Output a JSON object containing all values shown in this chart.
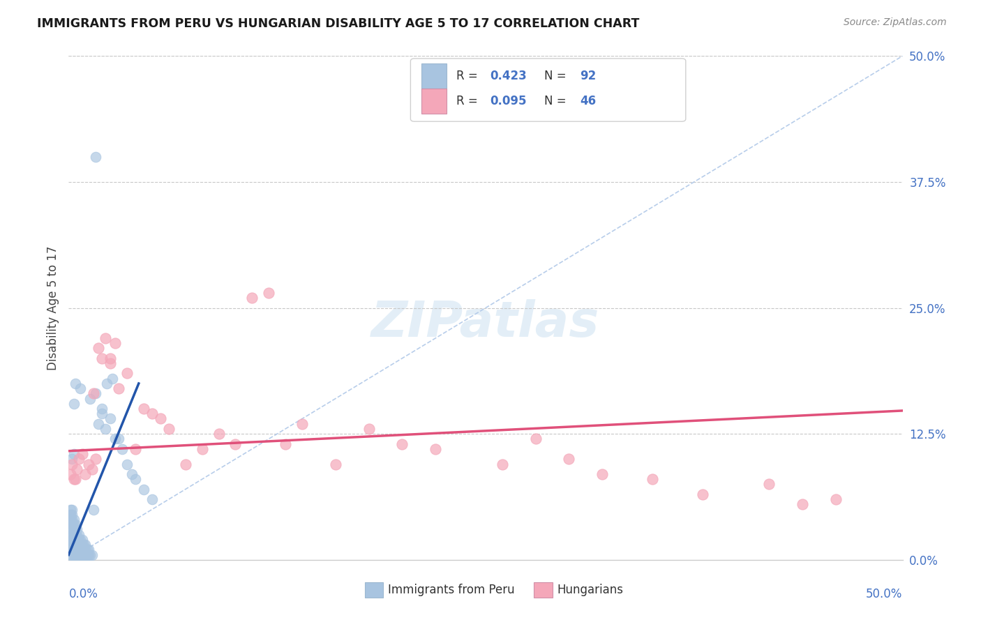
{
  "title": "IMMIGRANTS FROM PERU VS HUNGARIAN DISABILITY AGE 5 TO 17 CORRELATION CHART",
  "source": "Source: ZipAtlas.com",
  "ylabel": "Disability Age 5 to 17",
  "ytick_labels": [
    "0.0%",
    "12.5%",
    "25.0%",
    "37.5%",
    "50.0%"
  ],
  "ytick_values": [
    0.0,
    0.125,
    0.25,
    0.375,
    0.5
  ],
  "xlim": [
    0,
    0.5
  ],
  "ylim": [
    0,
    0.5
  ],
  "color_blue": "#a8c4e0",
  "color_pink": "#f4a7b9",
  "color_blue_line": "#2255aa",
  "color_pink_line": "#e0507a",
  "color_diag": "#b0c8e8",
  "legend_label1": "Immigrants from Peru",
  "legend_label2": "Hungarians",
  "blue_scatter_x": [
    0.001,
    0.001,
    0.001,
    0.001,
    0.001,
    0.001,
    0.001,
    0.001,
    0.001,
    0.001,
    0.002,
    0.002,
    0.002,
    0.002,
    0.002,
    0.002,
    0.002,
    0.002,
    0.002,
    0.002,
    0.003,
    0.003,
    0.003,
    0.003,
    0.003,
    0.003,
    0.003,
    0.003,
    0.004,
    0.004,
    0.004,
    0.004,
    0.004,
    0.004,
    0.004,
    0.005,
    0.005,
    0.005,
    0.005,
    0.005,
    0.005,
    0.006,
    0.006,
    0.006,
    0.006,
    0.006,
    0.007,
    0.007,
    0.007,
    0.007,
    0.008,
    0.008,
    0.008,
    0.008,
    0.009,
    0.009,
    0.009,
    0.01,
    0.01,
    0.01,
    0.011,
    0.011,
    0.012,
    0.012,
    0.013,
    0.014,
    0.015,
    0.016,
    0.018,
    0.02,
    0.022,
    0.025,
    0.028,
    0.03,
    0.032,
    0.035,
    0.038,
    0.04,
    0.045,
    0.05,
    0.013,
    0.007,
    0.004,
    0.003,
    0.002,
    0.016,
    0.02,
    0.023,
    0.026,
    0.003
  ],
  "blue_scatter_y": [
    0.005,
    0.01,
    0.015,
    0.02,
    0.025,
    0.03,
    0.035,
    0.04,
    0.045,
    0.05,
    0.005,
    0.01,
    0.015,
    0.02,
    0.025,
    0.03,
    0.035,
    0.04,
    0.045,
    0.05,
    0.005,
    0.01,
    0.015,
    0.02,
    0.025,
    0.03,
    0.035,
    0.04,
    0.005,
    0.01,
    0.015,
    0.02,
    0.025,
    0.03,
    0.035,
    0.005,
    0.01,
    0.015,
    0.02,
    0.025,
    0.03,
    0.005,
    0.01,
    0.015,
    0.02,
    0.025,
    0.005,
    0.01,
    0.015,
    0.02,
    0.005,
    0.01,
    0.015,
    0.02,
    0.005,
    0.01,
    0.015,
    0.005,
    0.01,
    0.015,
    0.005,
    0.01,
    0.005,
    0.01,
    0.005,
    0.005,
    0.05,
    0.165,
    0.135,
    0.15,
    0.13,
    0.14,
    0.12,
    0.12,
    0.11,
    0.095,
    0.085,
    0.08,
    0.07,
    0.06,
    0.16,
    0.17,
    0.175,
    0.155,
    0.1,
    0.4,
    0.145,
    0.175,
    0.18,
    0.105
  ],
  "pink_scatter_x": [
    0.001,
    0.002,
    0.003,
    0.005,
    0.006,
    0.008,
    0.01,
    0.012,
    0.014,
    0.016,
    0.018,
    0.02,
    0.022,
    0.025,
    0.028,
    0.03,
    0.035,
    0.04,
    0.045,
    0.05,
    0.06,
    0.07,
    0.08,
    0.09,
    0.1,
    0.11,
    0.12,
    0.14,
    0.16,
    0.18,
    0.2,
    0.22,
    0.26,
    0.3,
    0.32,
    0.35,
    0.38,
    0.42,
    0.44,
    0.46,
    0.004,
    0.015,
    0.025,
    0.055,
    0.13,
    0.28
  ],
  "pink_scatter_y": [
    0.085,
    0.095,
    0.08,
    0.09,
    0.1,
    0.105,
    0.085,
    0.095,
    0.09,
    0.1,
    0.21,
    0.2,
    0.22,
    0.195,
    0.215,
    0.17,
    0.185,
    0.11,
    0.15,
    0.145,
    0.13,
    0.095,
    0.11,
    0.125,
    0.115,
    0.26,
    0.265,
    0.135,
    0.095,
    0.13,
    0.115,
    0.11,
    0.095,
    0.1,
    0.085,
    0.08,
    0.065,
    0.075,
    0.055,
    0.06,
    0.08,
    0.165,
    0.2,
    0.14,
    0.115,
    0.12
  ],
  "blue_trendline_x": [
    0.0,
    0.042
  ],
  "blue_trendline_y": [
    0.005,
    0.175
  ],
  "pink_trendline_x": [
    0.0,
    0.5
  ],
  "pink_trendline_y": [
    0.108,
    0.148
  ]
}
